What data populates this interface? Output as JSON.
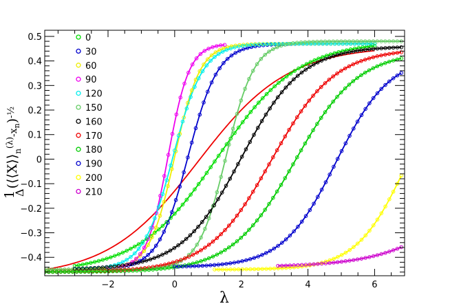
{
  "chart_data": {
    "type": "scatter",
    "xlabel": "λ",
    "ylabel": "1/Δ (⟨⟨X⟩⟩n(λ) − xn) − 1/2",
    "xlim": [
      -3.9,
      6.9
    ],
    "ylim": [
      -0.475,
      0.525
    ],
    "x_ticks": [
      -2,
      0,
      2,
      4,
      6
    ],
    "y_ticks": [
      -0.4,
      -0.3,
      -0.2,
      -0.1,
      0,
      0.1,
      0.2,
      0.3,
      0.4,
      0.5
    ],
    "x_tick_labels": [
      "−2",
      "0",
      "2",
      "4",
      "6"
    ],
    "y_tick_labels": [
      "−0.4",
      "−0.3",
      "−0.2",
      "−0.1",
      "0",
      "0.1",
      "0.2",
      "0.3",
      "0.4",
      "0.5"
    ],
    "legend_position": "top-left",
    "series": [
      {
        "name": "0",
        "color": "#00dd00",
        "data_range": [
          -3.0,
          6.0
        ],
        "center": 1.3,
        "width": 1.2,
        "low": -0.46,
        "high": 0.48
      },
      {
        "name": "30",
        "color": "#0000cc",
        "data_range": [
          -3.9,
          6.0
        ],
        "center": 0.4,
        "width": 0.45,
        "low": -0.45,
        "high": 0.47
      },
      {
        "name": "60",
        "color": "#eeee00",
        "data_range": [
          -3.9,
          6.0
        ],
        "center": 0.0,
        "width": 0.38,
        "low": -0.45,
        "high": 0.47
      },
      {
        "name": "90",
        "color": "#ee00ee",
        "data_range": [
          -2.0,
          1.5
        ],
        "center": -0.2,
        "width": 0.32,
        "low": -0.45,
        "high": 0.47
      },
      {
        "name": "120",
        "color": "#00eeee",
        "data_range": [
          -3.0,
          6.0
        ],
        "center": -0.05,
        "width": 0.45,
        "low": -0.45,
        "high": 0.47
      },
      {
        "name": "150",
        "color": "#66cc66",
        "data_range": [
          -3.9,
          6.8
        ],
        "center": 1.55,
        "width": 0.42,
        "low": -0.45,
        "high": 0.48
      },
      {
        "name": "160",
        "color": "#000000",
        "data_range": [
          -3.0,
          6.8
        ],
        "center": 2.0,
        "width": 0.9,
        "low": -0.45,
        "high": 0.46
      },
      {
        "name": "170",
        "color": "#ee0000",
        "data_range": [
          -3.9,
          6.8
        ],
        "center": 2.9,
        "width": 0.95,
        "low": -0.46,
        "high": 0.45
      },
      {
        "name": "180",
        "color": "#00cc00",
        "data_range": [
          -3.9,
          6.8
        ],
        "center": 3.6,
        "width": 0.95,
        "low": -0.46,
        "high": 0.44
      },
      {
        "name": "190",
        "color": "#0000cc",
        "data_range": [
          0.0,
          6.8
        ],
        "center": 4.85,
        "width": 0.8,
        "low": -0.44,
        "high": 0.42
      },
      {
        "name": "200",
        "color": "#ffff00",
        "data_range": [
          1.2,
          6.8
        ],
        "center": 6.95,
        "width": 0.75,
        "low": -0.45,
        "high": 0.4
      },
      {
        "name": "210",
        "color": "#cc00cc",
        "data_range": [
          3.1,
          6.8
        ],
        "center": 9.7,
        "width": 1.3,
        "low": -0.44,
        "high": 0.4
      }
    ],
    "reference_curve": {
      "name": "",
      "color": "#ee0000",
      "data_range": [
        -3.9,
        6.0
      ],
      "center": 0.7,
      "width": 1.35,
      "low": -0.48,
      "high": 0.46
    }
  }
}
